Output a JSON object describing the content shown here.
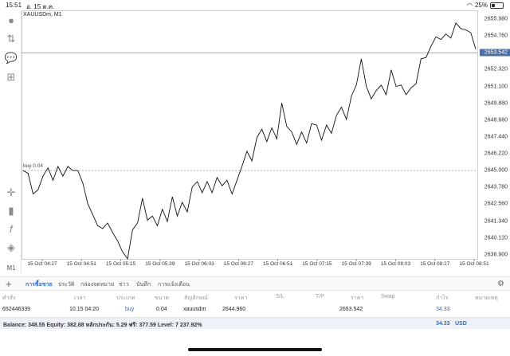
{
  "status": {
    "time": "15:51",
    "date": "อ. 15 ต.ค.",
    "battery": "25%"
  },
  "chart": {
    "symbol": "XAUUSDm, M1",
    "current_price": "2653.542",
    "buy_label": "buy 0.04",
    "y_ticks": [
      "2655.980",
      "2654.760",
      "2653.542",
      "2652.320",
      "2651.100",
      "2649.880",
      "2648.660",
      "2647.440",
      "2646.220",
      "2645.000",
      "2643.780",
      "2642.560",
      "2641.340",
      "2640.120",
      "2638.900"
    ],
    "x_ticks": [
      "15 Oct 04:27",
      "15 Oct 04:51",
      "15 Oct 05:15",
      "15 Oct 05:39",
      "15 Oct 06:03",
      "15 Oct 06:27",
      "15 Oct 06:51",
      "15 Oct 07:15",
      "15 Oct 07:39",
      "15 Oct 08:03",
      "15 Oct 08:27",
      "15 Oct 08:51"
    ]
  },
  "chart_data": {
    "type": "line",
    "title": "XAUUSDm, M1",
    "x_range": [
      "15 Oct 04:27",
      "15 Oct 08:51"
    ],
    "ylim": [
      2638.0,
      2656.5
    ],
    "series": [
      {
        "name": "XAUUSDm",
        "values": [
          2645.0,
          2644.8,
          2643.3,
          2643.6,
          2644.6,
          2645.2,
          2644.3,
          2645.3,
          2644.6,
          2645.3,
          2645.0,
          2645.0,
          2644.1,
          2642.6,
          2641.8,
          2641.0,
          2640.8,
          2641.2,
          2640.5,
          2639.9,
          2639.1,
          2638.6,
          2640.7,
          2641.2,
          2643.0,
          2641.4,
          2641.7,
          2641.0,
          2642.2,
          2641.3,
          2643.1,
          2641.7,
          2642.7,
          2642.0,
          2643.8,
          2644.2,
          2643.4,
          2644.2,
          2643.4,
          2644.5,
          2643.9,
          2644.3,
          2643.3,
          2644.3,
          2645.3,
          2646.4,
          2645.7,
          2647.4,
          2648.0,
          2647.1,
          2648.1,
          2647.3,
          2649.9,
          2648.2,
          2647.8,
          2646.9,
          2647.8,
          2647.0,
          2648.4,
          2648.3,
          2647.2,
          2648.3,
          2647.7,
          2649.0,
          2649.6,
          2648.7,
          2650.4,
          2651.2,
          2653.1,
          2651.1,
          2650.2,
          2650.8,
          2651.2,
          2650.5,
          2652.3,
          2651.1,
          2651.2,
          2650.5,
          2651.0,
          2651.3,
          2653.1,
          2653.2,
          2654.0,
          2654.7,
          2654.5,
          2654.9,
          2654.6,
          2655.7,
          2655.3,
          2655.2,
          2655.0,
          2653.8
        ]
      }
    ],
    "reference_line": {
      "label": "buy 0.04",
      "value": 2645.0
    },
    "grid": false
  },
  "tabs": [
    "การซื้อขาย",
    "ประวัติ",
    "กล่องจดหมาย",
    "ข่าว",
    "บันทึก",
    "การแจ้งเตือน"
  ],
  "table": {
    "headers": [
      "คำสั่ง",
      "เวลา",
      "ประเภท",
      "ขนาด",
      "สัญลักษณ์",
      "ราคา",
      "S/L",
      "T/P",
      "ราคา",
      "Swap",
      "กำไร",
      "หมายเหตุ"
    ],
    "row": [
      "652446339",
      "10.15 04:20",
      "buy",
      "0.04",
      "xauusdm",
      "2644.960",
      "",
      "",
      "2653.542",
      "",
      "34.33",
      ""
    ]
  },
  "footer": {
    "balance": "Balance: 348.55 Equity: 382.88 หลักประกัน: 5.29 ฟรี: 377.59 Level: 7 237.92%",
    "profit": "34.33",
    "currency": "USD"
  },
  "colors": {
    "accent": "#2a6fd0",
    "price_box": "#4a6fa5"
  }
}
